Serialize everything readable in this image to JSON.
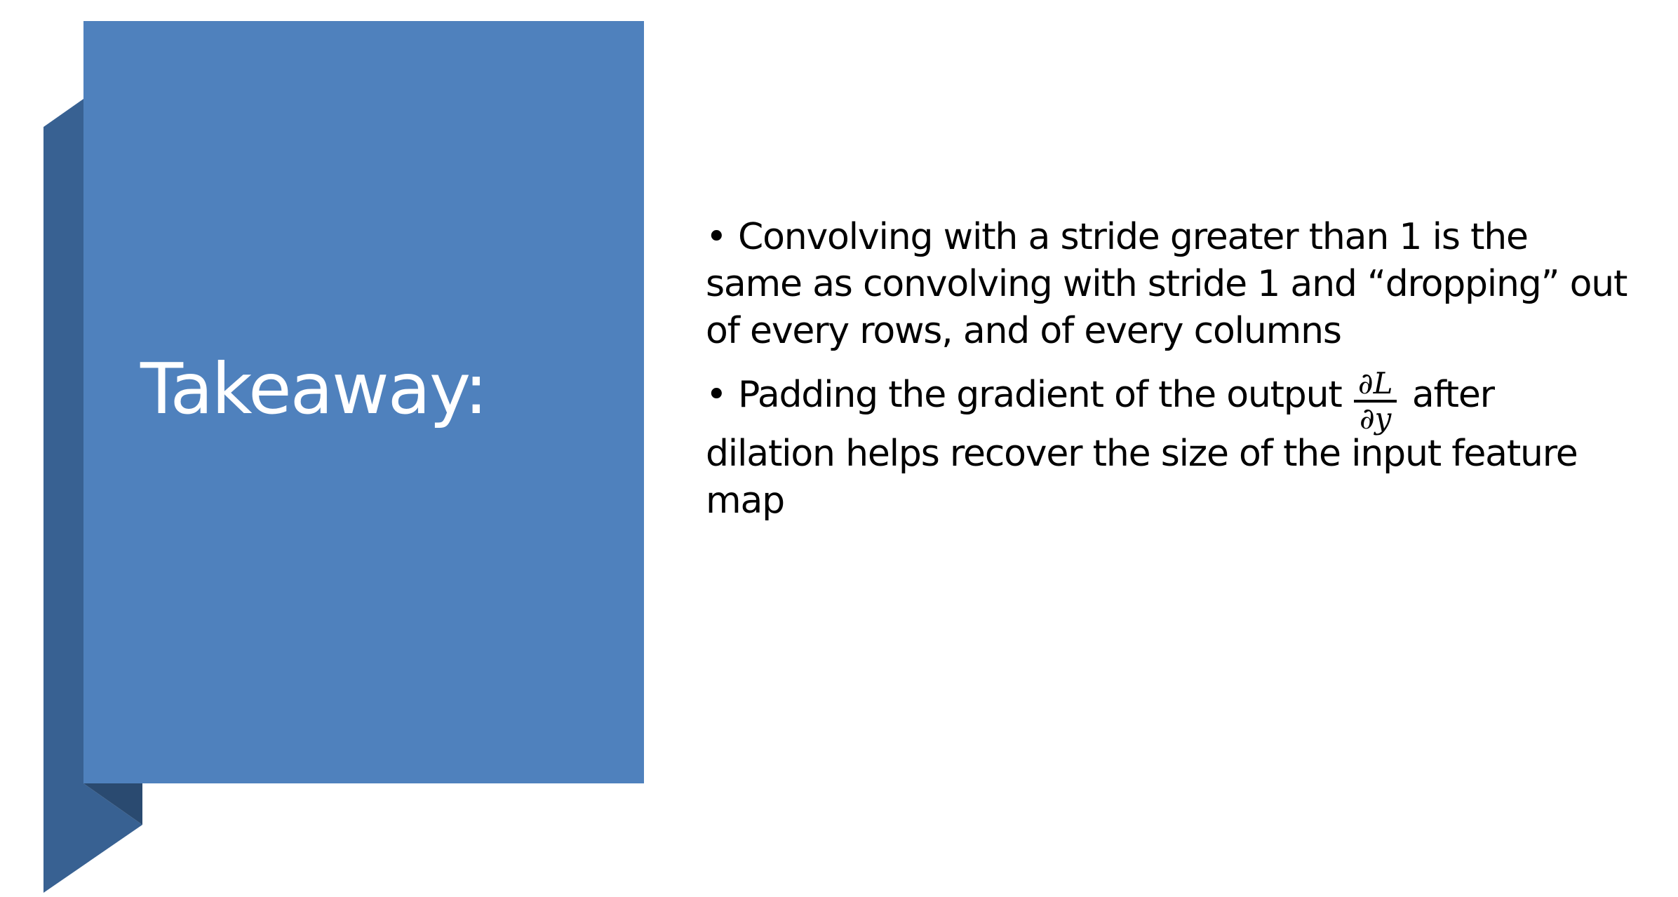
{
  "slide": {
    "title": "Takeaway:",
    "accent_color": "#4f81bd",
    "accent_shadow_color": "#386192",
    "accent_fold_color": "#2a4a70",
    "bullets": [
      {
        "marker": "•",
        "text": "Convolving with a stride greater than 1 is the same as convolving with stride 1 and “dropping” out of every rows, and of every columns"
      },
      {
        "marker": "•",
        "text_before": "Padding the gradient of the output",
        "fraction": {
          "numerator": "∂L",
          "denominator": "∂y"
        },
        "text_after": "after dilation helps recover the size of the input feature map"
      }
    ]
  }
}
